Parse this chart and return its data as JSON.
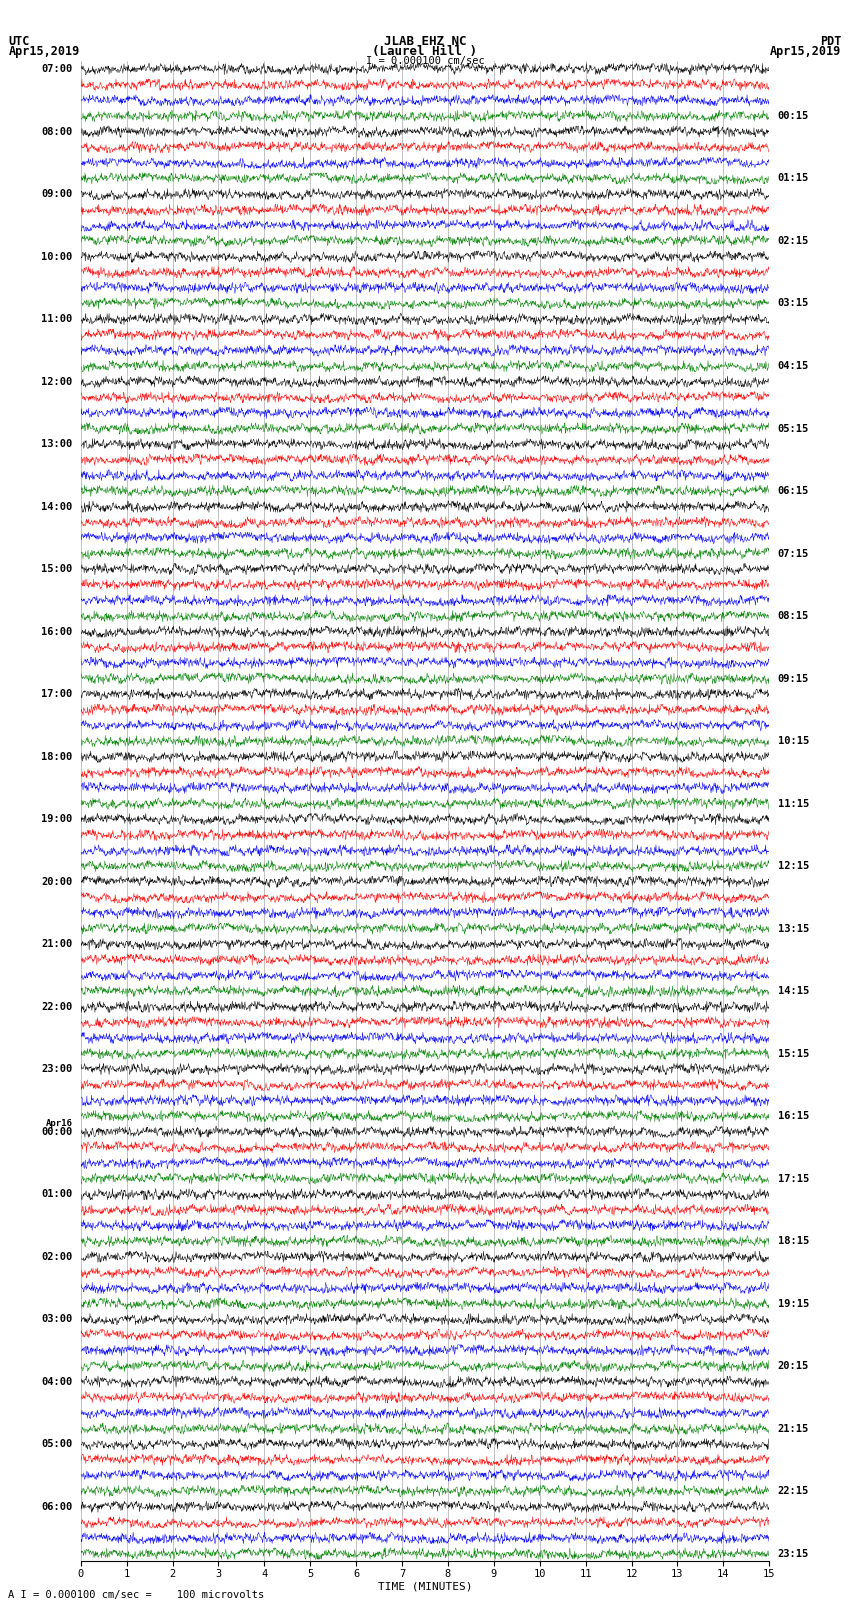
{
  "title_line1": "JLAB EHZ NC",
  "title_line2": "(Laurel Hill )",
  "scale_text": "I = 0.000100 cm/sec",
  "left_header_line1": "UTC",
  "left_header_line2": "Apr15,2019",
  "right_header_line1": "PDT",
  "right_header_line2": "Apr15,2019",
  "bottom_label": "TIME (MINUTES)",
  "footer_text": "A I = 0.000100 cm/sec =    100 microvolts",
  "xlabel_ticks": [
    0,
    1,
    2,
    3,
    4,
    5,
    6,
    7,
    8,
    9,
    10,
    11,
    12,
    13,
    14,
    15
  ],
  "trace_colors": [
    "black",
    "red",
    "blue",
    "green"
  ],
  "num_groups": 24,
  "traces_per_group": 4,
  "left_times": [
    "07:00",
    "08:00",
    "09:00",
    "10:00",
    "11:00",
    "12:00",
    "13:00",
    "14:00",
    "15:00",
    "16:00",
    "17:00",
    "18:00",
    "19:00",
    "20:00",
    "21:00",
    "22:00",
    "23:00",
    "00:00",
    "01:00",
    "02:00",
    "03:00",
    "04:00",
    "05:00",
    "06:00"
  ],
  "right_times": [
    "00:15",
    "01:15",
    "02:15",
    "03:15",
    "04:15",
    "05:15",
    "06:15",
    "07:15",
    "08:15",
    "09:15",
    "10:15",
    "11:15",
    "12:15",
    "13:15",
    "14:15",
    "15:15",
    "16:15",
    "17:15",
    "18:15",
    "19:15",
    "20:15",
    "21:15",
    "22:15",
    "23:15"
  ],
  "apr16_group_index": 17,
  "bg_color": "white",
  "grid_color": "#aaaaaa",
  "seed": 42
}
